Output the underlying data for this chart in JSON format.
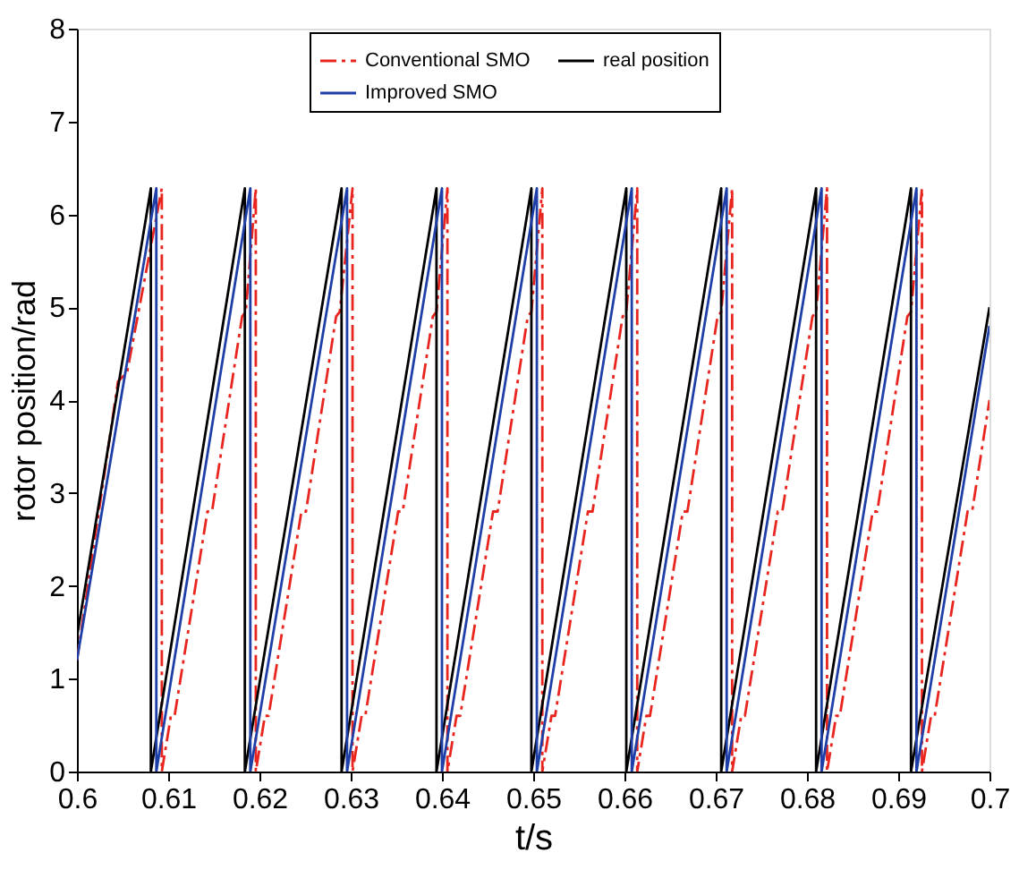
{
  "chart_data": {
    "type": "line",
    "xlabel": "t/s",
    "ylabel": "rotor position/rad",
    "xlim": [
      0.6,
      0.7
    ],
    "xticks": [
      {
        "value": 0.6,
        "label": "0.6"
      },
      0.61,
      0.62,
      0.63,
      0.64,
      0.65,
      0.66,
      0.67,
      0.68,
      0.69,
      {
        "value": 0.7,
        "label": "0.7"
      }
    ],
    "ylim": [
      0,
      8
    ],
    "yticks": [
      0,
      1,
      2,
      3,
      4,
      5,
      6,
      7,
      8
    ],
    "grid": false,
    "legend": "top",
    "marker": "none",
    "series": [
      {
        "name": "Conventional SMO",
        "color": "#e8261f",
        "line_style": "dashdot",
        "x": [
          0.6,
          0.6045,
          0.6055,
          0.6093,
          0.6093,
          0.6103,
          0.6107,
          0.6143,
          0.6148,
          0.6181,
          0.6185,
          0.6196,
          0.6196,
          0.6206,
          0.621,
          0.6246,
          0.6251,
          0.6284,
          0.6288,
          0.6302,
          0.6302,
          0.6312,
          0.6316,
          0.6352,
          0.6357,
          0.639,
          0.6394,
          0.6406,
          0.6406,
          0.6416,
          0.642,
          0.6456,
          0.6461,
          0.6494,
          0.6498,
          0.651,
          0.651,
          0.652,
          0.6524,
          0.656,
          0.6565,
          0.6598,
          0.6602,
          0.6614,
          0.6614,
          0.6624,
          0.6628,
          0.6664,
          0.6669,
          0.6702,
          0.6706,
          0.6718,
          0.6718,
          0.6728,
          0.6732,
          0.6768,
          0.6773,
          0.6806,
          0.681,
          0.6822,
          0.6822,
          0.6832,
          0.6836,
          0.6872,
          0.6877,
          0.691,
          0.6914,
          0.6926,
          0.6926,
          0.6936,
          0.694,
          0.6976,
          0.6981,
          0.7
        ],
        "values": [
          1.2,
          4.2,
          4.3,
          6.28,
          0,
          0.6,
          0.6,
          2.8,
          2.8,
          4.9,
          4.95,
          6.28,
          0,
          0.6,
          0.6,
          2.8,
          2.8,
          4.9,
          4.95,
          6.28,
          0,
          0.6,
          0.6,
          2.8,
          2.8,
          4.9,
          4.95,
          6.28,
          0,
          0.6,
          0.6,
          2.8,
          2.8,
          4.9,
          4.95,
          6.28,
          0,
          0.6,
          0.6,
          2.8,
          2.8,
          4.9,
          4.95,
          6.28,
          0,
          0.6,
          0.6,
          2.8,
          2.8,
          4.9,
          4.95,
          6.28,
          0,
          0.6,
          0.6,
          2.8,
          2.8,
          4.9,
          4.95,
          6.28,
          0,
          0.6,
          0.6,
          2.8,
          2.8,
          4.9,
          4.95,
          6.28,
          0,
          0.6,
          0.6,
          2.8,
          2.8,
          4.0
        ]
      },
      {
        "name": "real position",
        "color": "#000000",
        "line_style": "solid",
        "x": [
          0.6,
          0.6081,
          0.6081,
          0.6184,
          0.6184,
          0.629,
          0.629,
          0.6394,
          0.6394,
          0.6498,
          0.6498,
          0.6602,
          0.6602,
          0.6706,
          0.6706,
          0.681,
          0.681,
          0.6914,
          0.6914,
          0.7
        ],
        "values": [
          1.45,
          6.28,
          0,
          6.28,
          0,
          6.28,
          0,
          6.28,
          0,
          6.28,
          0,
          6.28,
          0,
          6.28,
          0,
          6.28,
          0,
          6.28,
          0,
          5.0
        ]
      },
      {
        "name": "Improved SMO",
        "color": "#1f3fa8",
        "line_style": "solid",
        "x": [
          0.6,
          0.6087,
          0.6087,
          0.619,
          0.619,
          0.6296,
          0.6296,
          0.64,
          0.64,
          0.6504,
          0.6504,
          0.6608,
          0.6608,
          0.6712,
          0.6712,
          0.6816,
          0.6816,
          0.692,
          0.692,
          0.7
        ],
        "values": [
          1.2,
          6.28,
          0,
          6.28,
          0,
          6.28,
          0,
          6.28,
          0,
          6.28,
          0,
          6.28,
          0,
          6.28,
          0,
          6.28,
          0,
          6.28,
          0,
          4.8
        ]
      }
    ]
  }
}
